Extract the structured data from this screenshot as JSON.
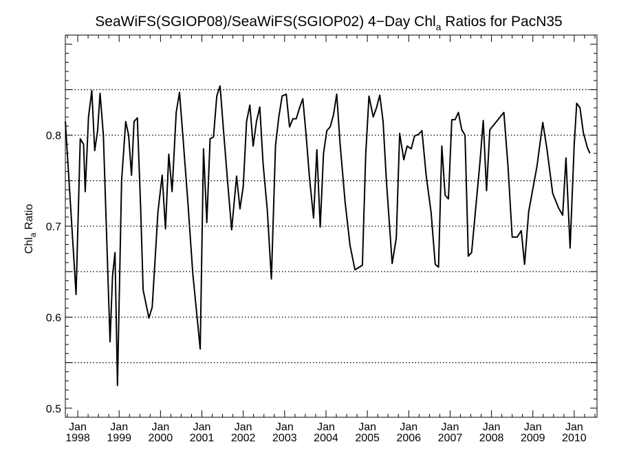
{
  "chart_data": {
    "type": "line",
    "title_main": "SeaWiFS(SGIOP08)/SeaWiFS(SGIOP02) 4−Day Chl",
    "title_sub": "a",
    "title_end": " Ratios for PacN35",
    "ylabel_main": "Chl",
    "ylabel_sub": "a",
    "ylabel_end": " Ratio",
    "xlim": [
      1997.7,
      2010.55
    ],
    "ylim": [
      0.49,
      0.91
    ],
    "gridlines": [
      0.55,
      0.6,
      0.65,
      0.7,
      0.75,
      0.8,
      0.85
    ],
    "grid": "horizontal dotted",
    "y_ticks": [
      {
        "value": 0.5,
        "label": "0.5"
      },
      {
        "value": 0.6,
        "label": "0.6"
      },
      {
        "value": 0.7,
        "label": "0.7"
      },
      {
        "value": 0.8,
        "label": "0.8"
      }
    ],
    "x_ticks": [
      {
        "value": 1998,
        "month": "Jan",
        "year": "1998"
      },
      {
        "value": 1999,
        "month": "Jan",
        "year": "1999"
      },
      {
        "value": 2000,
        "month": "Jan",
        "year": "2000"
      },
      {
        "value": 2001,
        "month": "Jan",
        "year": "2001"
      },
      {
        "value": 2002,
        "month": "Jan",
        "year": "2002"
      },
      {
        "value": 2003,
        "month": "Jan",
        "year": "2003"
      },
      {
        "value": 2004,
        "month": "Jan",
        "year": "2004"
      },
      {
        "value": 2005,
        "month": "Jan",
        "year": "2005"
      },
      {
        "value": 2006,
        "month": "Jan",
        "year": "2006"
      },
      {
        "value": 2007,
        "month": "Jan",
        "year": "2007"
      },
      {
        "value": 2008,
        "month": "Jan",
        "year": "2008"
      },
      {
        "value": 2009,
        "month": "Jan",
        "year": "2009"
      },
      {
        "value": 2010,
        "month": "Jan",
        "year": "2010"
      }
    ],
    "series": [
      {
        "color": "#000000",
        "points": [
          [
            1997.7,
            0.815
          ],
          [
            1997.96,
            0.625
          ],
          [
            1998.06,
            0.796
          ],
          [
            1998.14,
            0.79
          ],
          [
            1998.18,
            0.738
          ],
          [
            1998.26,
            0.82
          ],
          [
            1998.34,
            0.849
          ],
          [
            1998.41,
            0.783
          ],
          [
            1998.48,
            0.805
          ],
          [
            1998.54,
            0.846
          ],
          [
            1998.62,
            0.8
          ],
          [
            1998.78,
            0.573
          ],
          [
            1998.84,
            0.645
          ],
          [
            1998.9,
            0.671
          ],
          [
            1998.96,
            0.525
          ],
          [
            1999.06,
            0.75
          ],
          [
            1999.16,
            0.815
          ],
          [
            1999.23,
            0.8
          ],
          [
            1999.3,
            0.756
          ],
          [
            1999.36,
            0.815
          ],
          [
            1999.44,
            0.819
          ],
          [
            1999.52,
            0.72
          ],
          [
            1999.58,
            0.63
          ],
          [
            1999.72,
            0.599
          ],
          [
            1999.8,
            0.611
          ],
          [
            1999.94,
            0.716
          ],
          [
            2000.04,
            0.756
          ],
          [
            2000.12,
            0.697
          ],
          [
            2000.2,
            0.779
          ],
          [
            2000.28,
            0.738
          ],
          [
            2000.38,
            0.825
          ],
          [
            2000.46,
            0.847
          ],
          [
            2000.54,
            0.8
          ],
          [
            2000.66,
            0.727
          ],
          [
            2000.78,
            0.648
          ],
          [
            2000.96,
            0.565
          ],
          [
            2001.04,
            0.785
          ],
          [
            2001.12,
            0.704
          ],
          [
            2001.2,
            0.796
          ],
          [
            2001.28,
            0.798
          ],
          [
            2001.36,
            0.843
          ],
          [
            2001.44,
            0.854
          ],
          [
            2001.52,
            0.807
          ],
          [
            2001.62,
            0.75
          ],
          [
            2001.72,
            0.696
          ],
          [
            2001.84,
            0.755
          ],
          [
            2001.92,
            0.719
          ],
          [
            2002.0,
            0.744
          ],
          [
            2002.08,
            0.815
          ],
          [
            2002.16,
            0.833
          ],
          [
            2002.24,
            0.788
          ],
          [
            2002.32,
            0.815
          ],
          [
            2002.4,
            0.831
          ],
          [
            2002.48,
            0.769
          ],
          [
            2002.58,
            0.718
          ],
          [
            2002.68,
            0.642
          ],
          [
            2002.78,
            0.789
          ],
          [
            2002.86,
            0.82
          ],
          [
            2002.94,
            0.843
          ],
          [
            2003.04,
            0.845
          ],
          [
            2003.12,
            0.809
          ],
          [
            2003.2,
            0.818
          ],
          [
            2003.28,
            0.818
          ],
          [
            2003.36,
            0.83
          ],
          [
            2003.44,
            0.84
          ],
          [
            2003.52,
            0.8
          ],
          [
            2003.6,
            0.754
          ],
          [
            2003.7,
            0.709
          ],
          [
            2003.78,
            0.784
          ],
          [
            2003.86,
            0.699
          ],
          [
            2003.94,
            0.78
          ],
          [
            2004.02,
            0.805
          ],
          [
            2004.1,
            0.809
          ],
          [
            2004.18,
            0.822
          ],
          [
            2004.26,
            0.845
          ],
          [
            2004.34,
            0.791
          ],
          [
            2004.46,
            0.727
          ],
          [
            2004.58,
            0.679
          ],
          [
            2004.7,
            0.652
          ],
          [
            2004.88,
            0.657
          ],
          [
            2004.96,
            0.778
          ],
          [
            2005.04,
            0.843
          ],
          [
            2005.14,
            0.82
          ],
          [
            2005.22,
            0.83
          ],
          [
            2005.3,
            0.844
          ],
          [
            2005.38,
            0.815
          ],
          [
            2005.46,
            0.75
          ],
          [
            2005.6,
            0.659
          ],
          [
            2005.7,
            0.687
          ],
          [
            2005.78,
            0.802
          ],
          [
            2005.88,
            0.773
          ],
          [
            2005.96,
            0.788
          ],
          [
            2006.06,
            0.785
          ],
          [
            2006.14,
            0.799
          ],
          [
            2006.24,
            0.801
          ],
          [
            2006.32,
            0.805
          ],
          [
            2006.42,
            0.756
          ],
          [
            2006.54,
            0.715
          ],
          [
            2006.64,
            0.658
          ],
          [
            2006.72,
            0.655
          ],
          [
            2006.8,
            0.788
          ],
          [
            2006.88,
            0.734
          ],
          [
            2006.96,
            0.73
          ],
          [
            2007.04,
            0.817
          ],
          [
            2007.12,
            0.817
          ],
          [
            2007.2,
            0.825
          ],
          [
            2007.28,
            0.806
          ],
          [
            2007.36,
            0.8
          ],
          [
            2007.44,
            0.667
          ],
          [
            2007.52,
            0.671
          ],
          [
            2007.62,
            0.72
          ],
          [
            2007.72,
            0.77
          ],
          [
            2007.8,
            0.816
          ],
          [
            2007.88,
            0.739
          ],
          [
            2007.96,
            0.806
          ],
          [
            2008.3,
            0.825
          ],
          [
            2008.4,
            0.765
          ],
          [
            2008.5,
            0.688
          ],
          [
            2008.62,
            0.688
          ],
          [
            2008.72,
            0.695
          ],
          [
            2008.8,
            0.658
          ],
          [
            2008.9,
            0.716
          ],
          [
            2009.1,
            0.766
          ],
          [
            2009.24,
            0.814
          ],
          [
            2009.34,
            0.785
          ],
          [
            2009.48,
            0.736
          ],
          [
            2009.62,
            0.72
          ],
          [
            2009.72,
            0.712
          ],
          [
            2009.8,
            0.775
          ],
          [
            2009.9,
            0.676
          ],
          [
            2010.0,
            0.79
          ],
          [
            2010.06,
            0.835
          ],
          [
            2010.14,
            0.83
          ],
          [
            2010.22,
            0.803
          ],
          [
            2010.32,
            0.786
          ],
          [
            2010.38,
            0.78
          ]
        ]
      }
    ]
  }
}
